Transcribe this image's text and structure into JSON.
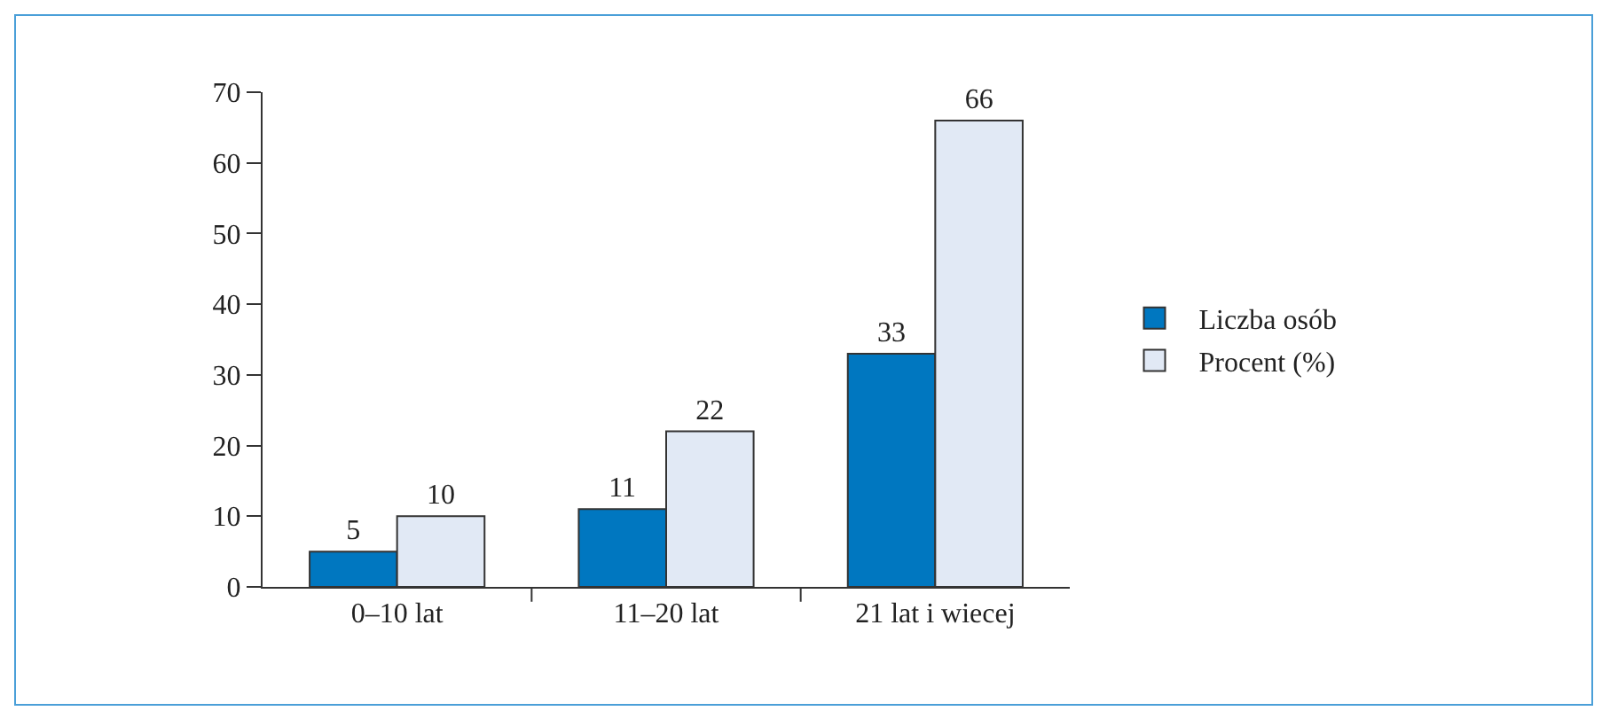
{
  "chart_data": {
    "type": "bar",
    "categories": [
      "0–10 lat",
      "11–20 lat",
      "21 lat i wiecej"
    ],
    "series": [
      {
        "name": "Liczba osób",
        "color": "#0077c0",
        "values": [
          5,
          11,
          33
        ]
      },
      {
        "name": "Procent (%)",
        "color": "#e1e9f5",
        "values": [
          10,
          22,
          66
        ]
      }
    ],
    "ylim": [
      0,
      70
    ],
    "yticks": [
      0,
      10,
      20,
      30,
      40,
      50,
      60,
      70
    ],
    "grid": false,
    "legend": "right",
    "data_labels": true
  }
}
